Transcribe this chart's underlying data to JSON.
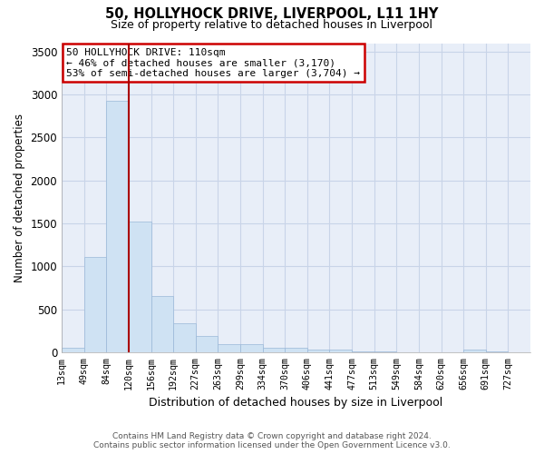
{
  "title_line1": "50, HOLLYHOCK DRIVE, LIVERPOOL, L11 1HY",
  "title_line2": "Size of property relative to detached houses in Liverpool",
  "xlabel": "Distribution of detached houses by size in Liverpool",
  "ylabel": "Number of detached properties",
  "bin_labels": [
    "13sqm",
    "49sqm",
    "84sqm",
    "120sqm",
    "156sqm",
    "192sqm",
    "227sqm",
    "263sqm",
    "299sqm",
    "334sqm",
    "370sqm",
    "406sqm",
    "441sqm",
    "477sqm",
    "513sqm",
    "549sqm",
    "584sqm",
    "620sqm",
    "656sqm",
    "691sqm",
    "727sqm"
  ],
  "bar_heights": [
    50,
    1110,
    2930,
    1520,
    650,
    340,
    185,
    90,
    90,
    55,
    50,
    30,
    30,
    5,
    5,
    0,
    0,
    0,
    25,
    5,
    0
  ],
  "bar_color": "#cfe2f3",
  "bar_edge_color": "#9ab8d8",
  "grid_color": "#c8d4e8",
  "background_color": "#e8eef8",
  "vline_bin_index": 3,
  "vline_color": "#aa0000",
  "annotation_text": "50 HOLLYHOCK DRIVE: 110sqm\n← 46% of detached houses are smaller (3,170)\n53% of semi-detached houses are larger (3,704) →",
  "annotation_box_color": "#cc0000",
  "ylim": [
    0,
    3600
  ],
  "yticks": [
    0,
    500,
    1000,
    1500,
    2000,
    2500,
    3000,
    3500
  ],
  "footer_line1": "Contains HM Land Registry data © Crown copyright and database right 2024.",
  "footer_line2": "Contains public sector information licensed under the Open Government Licence v3.0."
}
